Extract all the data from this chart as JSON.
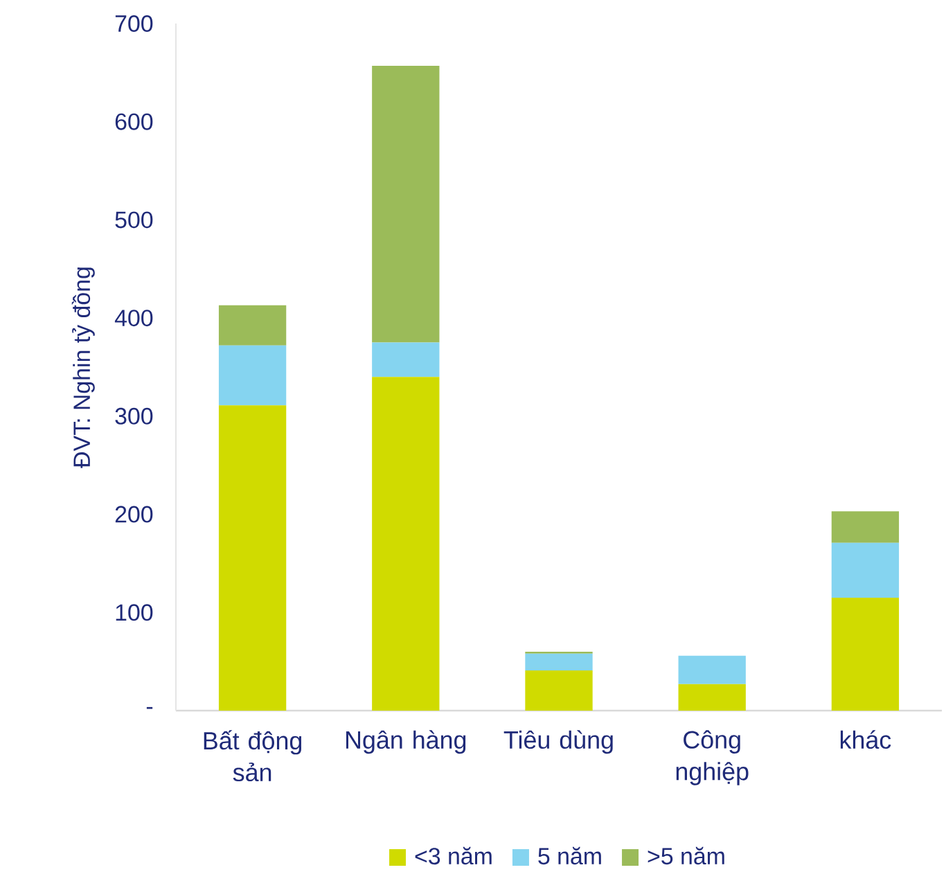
{
  "chart_data": {
    "type": "bar",
    "stacked": true,
    "ylabel": "ĐVT: Nghin tỷ đồng",
    "categories": [
      "Bất động sản",
      "Ngân hàng",
      "Tiêu dùng",
      "Công nghiệp",
      "khác"
    ],
    "series": [
      {
        "name": "<3 năm",
        "color": "#d0db00",
        "values": [
          311,
          340,
          41,
          27,
          115
        ]
      },
      {
        "name": "5 năm",
        "color": "#85d4f0",
        "values": [
          61,
          35,
          17,
          29,
          56
        ]
      },
      {
        "name": ">5 năm",
        "color": "#9bbb59",
        "values": [
          41,
          282,
          2,
          0,
          32
        ]
      }
    ],
    "ylim": [
      0,
      700
    ],
    "yticks": [
      {
        "value": 0,
        "label": "-"
      },
      100,
      200,
      300,
      400,
      500,
      600,
      700
    ],
    "grid": false,
    "legend": "bottom"
  }
}
